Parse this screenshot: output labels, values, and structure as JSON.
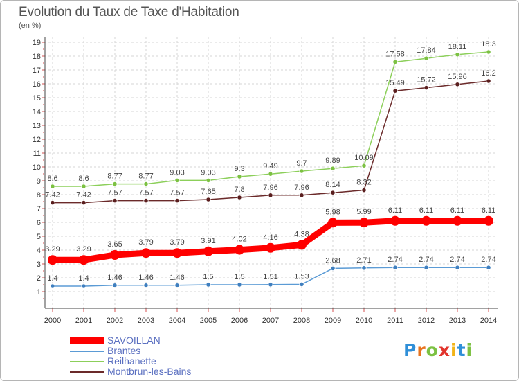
{
  "title": "Evolution du Taux de Taxe d'Habitation",
  "subtitle": "(en %)",
  "logo": {
    "letters": [
      {
        "ch": "P",
        "color": "#2f8fd8"
      },
      {
        "ch": "r",
        "color": "#e8731e"
      },
      {
        "ch": "o",
        "color": "#7cc142"
      },
      {
        "ch": "x",
        "color": "#e2342c"
      },
      {
        "ch": "i",
        "color": "#f2b418"
      },
      {
        "ch": "t",
        "color": "#2f8fd8"
      },
      {
        "ch": "i",
        "color": "#7cc142"
      }
    ]
  },
  "chart_data": {
    "type": "line",
    "x": [
      "2000",
      "2001",
      "2002",
      "2003",
      "2004",
      "2005",
      "2006",
      "2007",
      "2008",
      "2009",
      "2010",
      "2011",
      "2012",
      "2013",
      "2014"
    ],
    "yticks": [
      1,
      2,
      3,
      4,
      5,
      6,
      7,
      8,
      9,
      10,
      11,
      12,
      13,
      14,
      15,
      16,
      17,
      18,
      19
    ],
    "ylim": [
      0,
      19
    ],
    "grid": true,
    "legend_position": "bottom-left",
    "series": [
      {
        "name": "Reilhanette",
        "color": "#8ccf5a",
        "marker": "#7cc142",
        "values": [
          8.6,
          8.6,
          8.77,
          8.77,
          9.03,
          9.03,
          9.3,
          9.49,
          9.7,
          9.89,
          10.09,
          17.58,
          17.84,
          18.11,
          18.3
        ],
        "labels": [
          "8.6",
          "8.6",
          "8.77",
          "8.77",
          "9.03",
          "9.03",
          "9.3",
          "9.49",
          "9.7",
          "9.89",
          "10.09",
          "17.58",
          "17.84",
          "18.11",
          "18.3"
        ]
      },
      {
        "name": "Montbrun-les-Bains",
        "color": "#6b2a2a",
        "marker": "#5a1e1e",
        "values": [
          7.42,
          7.42,
          7.57,
          7.57,
          7.57,
          7.65,
          7.8,
          7.96,
          7.96,
          8.14,
          8.32,
          15.49,
          15.72,
          15.96,
          16.2
        ],
        "labels": [
          "7.42",
          "7.42",
          "7.57",
          "7.57",
          "7.57",
          "7.65",
          "7.8",
          "7.96",
          "7.96",
          "8.14",
          "8.32",
          "15.49",
          "15.72",
          "15.96",
          "16.2"
        ]
      },
      {
        "name": "SAVOILLAN",
        "color": "#ff0000",
        "marker": "#ff0000",
        "values": [
          3.29,
          3.29,
          3.65,
          3.79,
          3.79,
          3.91,
          4.02,
          4.16,
          4.38,
          5.98,
          5.99,
          6.11,
          6.11,
          6.11,
          6.11
        ],
        "labels": [
          "3.29",
          "3.29",
          "3.65",
          "3.79",
          "3.79",
          "3.91",
          "4.02",
          "4.16",
          "4.38",
          "5.98",
          "5.99",
          "6.11",
          "6.11",
          "6.11",
          "6.11"
        ]
      },
      {
        "name": "Brantes",
        "color": "#5b9bd5",
        "marker": "#3f7fbf",
        "values": [
          1.4,
          1.4,
          1.46,
          1.46,
          1.46,
          1.5,
          1.5,
          1.51,
          1.53,
          2.68,
          2.71,
          2.74,
          2.74,
          2.74,
          2.74
        ],
        "labels": [
          "1.4",
          "1.4",
          "1.46",
          "1.46",
          "1.46",
          "1.5",
          "1.5",
          "1.51",
          "1.53",
          "2.68",
          "2.71",
          "2.74",
          "2.74",
          "2.74",
          "2.74"
        ]
      }
    ]
  },
  "legend": [
    {
      "name": "SAVOILLAN",
      "color": "#ff0000"
    },
    {
      "name": "Brantes",
      "color": "#5b9bd5"
    },
    {
      "name": "Reilhanette",
      "color": "#8ccf5a"
    },
    {
      "name": "Montbrun-les-Bains",
      "color": "#6b2a2a"
    }
  ]
}
